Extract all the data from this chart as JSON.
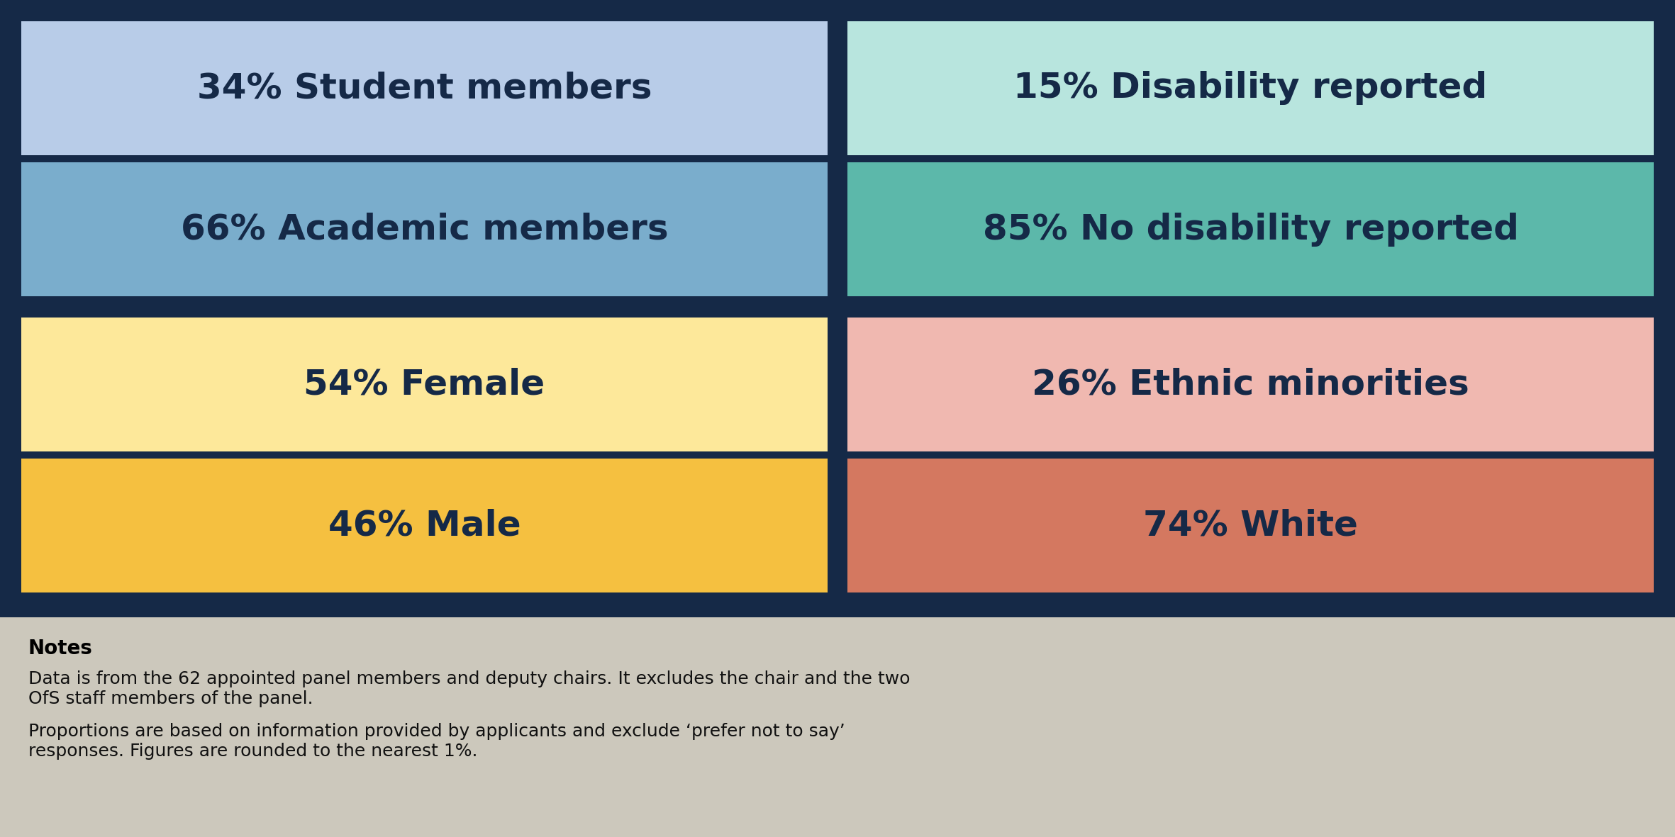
{
  "background_color": "#152947",
  "notes_bg_color": "#ccc8bc",
  "cells": [
    {
      "row": 0,
      "col": 0,
      "pct": "34%",
      "label": " Student members",
      "bg": "#b8cce8"
    },
    {
      "row": 1,
      "col": 0,
      "pct": "66%",
      "label": " Academic members",
      "bg": "#7aadcc"
    },
    {
      "row": 2,
      "col": 0,
      "pct": "54%",
      "label": " Female",
      "bg": "#fde89a"
    },
    {
      "row": 3,
      "col": 0,
      "pct": "46%",
      "label": " Male",
      "bg": "#f5c040"
    },
    {
      "row": 0,
      "col": 1,
      "pct": "15%",
      "label": " Disability reported",
      "bg": "#b8e5de"
    },
    {
      "row": 1,
      "col": 1,
      "pct": "85%",
      "label": " No disability reported",
      "bg": "#5cb8aa"
    },
    {
      "row": 2,
      "col": 1,
      "pct": "26%",
      "label": " Ethnic minorities",
      "bg": "#f0b8b0"
    },
    {
      "row": 3,
      "col": 1,
      "pct": "74%",
      "label": " White",
      "bg": "#d47860"
    }
  ],
  "text_color": "#152947",
  "pct_fontsize": 36,
  "label_fontsize": 36,
  "notes_title": "Notes",
  "notes_para1_lines": [
    "Data is from the 62 appointed panel members and deputy chairs. It excludes the chair and the two",
    "OfS staff members of the panel."
  ],
  "notes_para2_lines": [
    "Proportions are based on information provided by applicants and exclude ‘prefer not to say’",
    "responses. Figures are rounded to the nearest 1%."
  ],
  "notes_fontsize": 18,
  "notes_title_fontsize": 20
}
